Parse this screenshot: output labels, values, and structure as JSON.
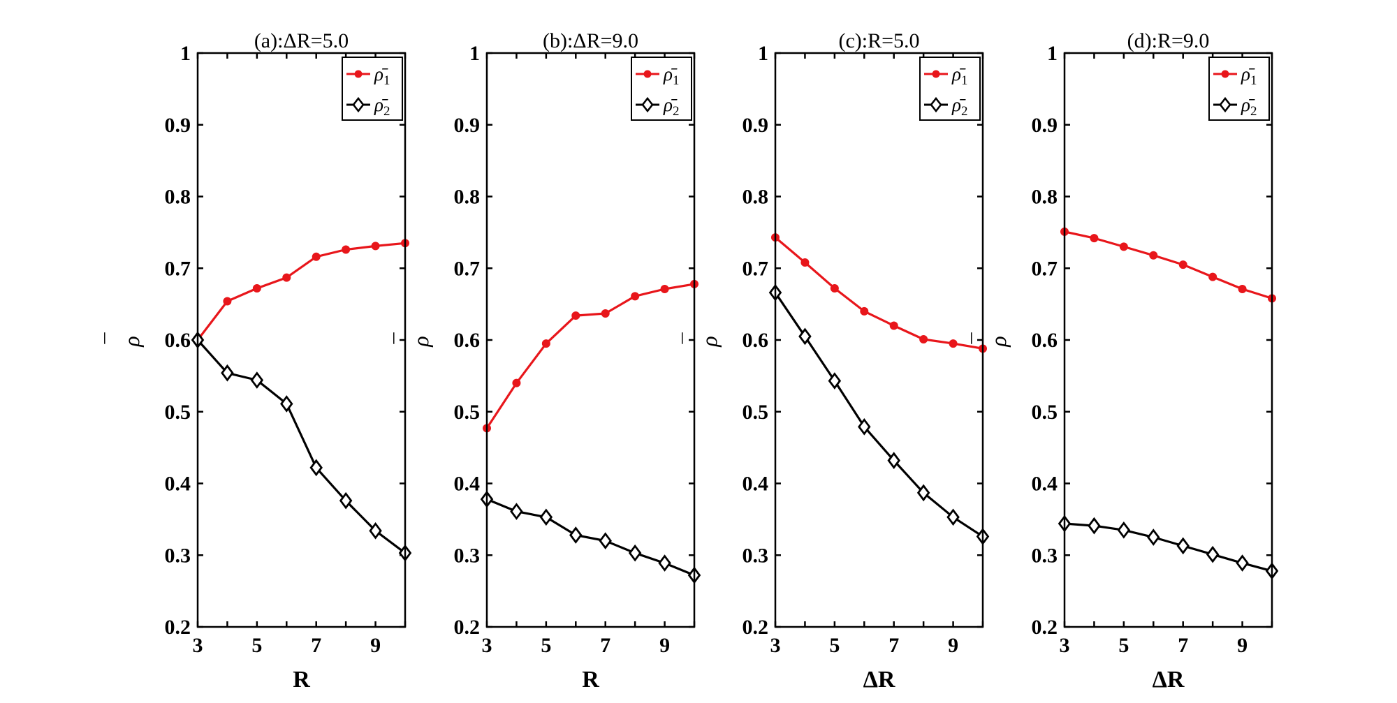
{
  "chart_data": [
    {
      "type": "line",
      "title": "(a):ΔR=5.0",
      "xlabel": "R",
      "ylabel": "ρ",
      "ylabel_bar": "¯",
      "x": [
        3,
        4,
        5,
        6,
        7,
        8,
        9,
        10
      ],
      "xlim": [
        3,
        10
      ],
      "ylim": [
        0.2,
        1
      ],
      "xticks": [
        "3",
        "5",
        "7",
        "9"
      ],
      "yticks": [
        "0.2",
        "0.3",
        "0.4",
        "0.5",
        "0.6",
        "0.7",
        "0.8",
        "0.9",
        "1"
      ],
      "legend_position": "top-right",
      "series": [
        {
          "name": "ρ̄1",
          "symbol": "ρ̄",
          "subscript": "1",
          "color": "#e8161b",
          "marker": "dot",
          "values": [
            0.6,
            0.654,
            0.672,
            0.687,
            0.716,
            0.726,
            0.731,
            0.735
          ]
        },
        {
          "name": "ρ̄2",
          "symbol": "ρ̄",
          "subscript": "2",
          "color": "#000000",
          "marker": "diamond",
          "values": [
            0.6,
            0.554,
            0.544,
            0.511,
            0.422,
            0.376,
            0.334,
            0.303
          ]
        }
      ]
    },
    {
      "type": "line",
      "title": "(b):ΔR=9.0",
      "xlabel": "R",
      "ylabel": "ρ",
      "ylabel_bar": "¯",
      "x": [
        3,
        4,
        5,
        6,
        7,
        8,
        9,
        10
      ],
      "xlim": [
        3,
        10
      ],
      "ylim": [
        0.2,
        1
      ],
      "xticks": [
        "3",
        "5",
        "7",
        "9"
      ],
      "yticks": [
        "0.2",
        "0.3",
        "0.4",
        "0.5",
        "0.6",
        "0.7",
        "0.8",
        "0.9",
        "1"
      ],
      "legend_position": "top-right",
      "series": [
        {
          "name": "ρ̄1",
          "symbol": "ρ̄",
          "subscript": "1",
          "color": "#e8161b",
          "marker": "dot",
          "values": [
            0.477,
            0.54,
            0.595,
            0.634,
            0.637,
            0.661,
            0.671,
            0.678
          ]
        },
        {
          "name": "ρ̄2",
          "symbol": "ρ̄",
          "subscript": "2",
          "color": "#000000",
          "marker": "diamond",
          "values": [
            0.378,
            0.361,
            0.353,
            0.328,
            0.32,
            0.303,
            0.289,
            0.272
          ]
        }
      ]
    },
    {
      "type": "line",
      "title": "(c):R=5.0",
      "xlabel": "ΔR",
      "ylabel": "ρ",
      "ylabel_bar": "¯",
      "x": [
        3,
        4,
        5,
        6,
        7,
        8,
        9,
        10
      ],
      "xlim": [
        3,
        10
      ],
      "ylim": [
        0.2,
        1
      ],
      "xticks": [
        "3",
        "5",
        "7",
        "9"
      ],
      "yticks": [
        "0.2",
        "0.3",
        "0.4",
        "0.5",
        "0.6",
        "0.7",
        "0.8",
        "0.9",
        "1"
      ],
      "legend_position": "top-right",
      "series": [
        {
          "name": "ρ̄1",
          "symbol": "ρ̄",
          "subscript": "1",
          "color": "#e8161b",
          "marker": "dot",
          "values": [
            0.743,
            0.708,
            0.672,
            0.64,
            0.62,
            0.601,
            0.595,
            0.588
          ]
        },
        {
          "name": "ρ̄2",
          "symbol": "ρ̄",
          "subscript": "2",
          "color": "#000000",
          "marker": "diamond",
          "values": [
            0.666,
            0.605,
            0.543,
            0.479,
            0.432,
            0.387,
            0.353,
            0.326
          ]
        }
      ]
    },
    {
      "type": "line",
      "title": "(d):R=9.0",
      "xlabel": "ΔR",
      "ylabel": "ρ",
      "ylabel_bar": "¯",
      "x": [
        3,
        4,
        5,
        6,
        7,
        8,
        9,
        10
      ],
      "xlim": [
        3,
        10
      ],
      "ylim": [
        0.2,
        1
      ],
      "xticks": [
        "3",
        "5",
        "7",
        "9"
      ],
      "yticks": [
        "0.2",
        "0.3",
        "0.4",
        "0.5",
        "0.6",
        "0.7",
        "0.8",
        "0.9",
        "1"
      ],
      "legend_position": "top-right",
      "series": [
        {
          "name": "ρ̄1",
          "symbol": "ρ̄",
          "subscript": "1",
          "color": "#e8161b",
          "marker": "dot",
          "values": [
            0.751,
            0.742,
            0.73,
            0.718,
            0.705,
            0.688,
            0.671,
            0.658
          ]
        },
        {
          "name": "ρ̄2",
          "symbol": "ρ̄",
          "subscript": "2",
          "color": "#000000",
          "marker": "diamond",
          "values": [
            0.344,
            0.341,
            0.335,
            0.325,
            0.313,
            0.301,
            0.289,
            0.278
          ]
        }
      ]
    }
  ]
}
